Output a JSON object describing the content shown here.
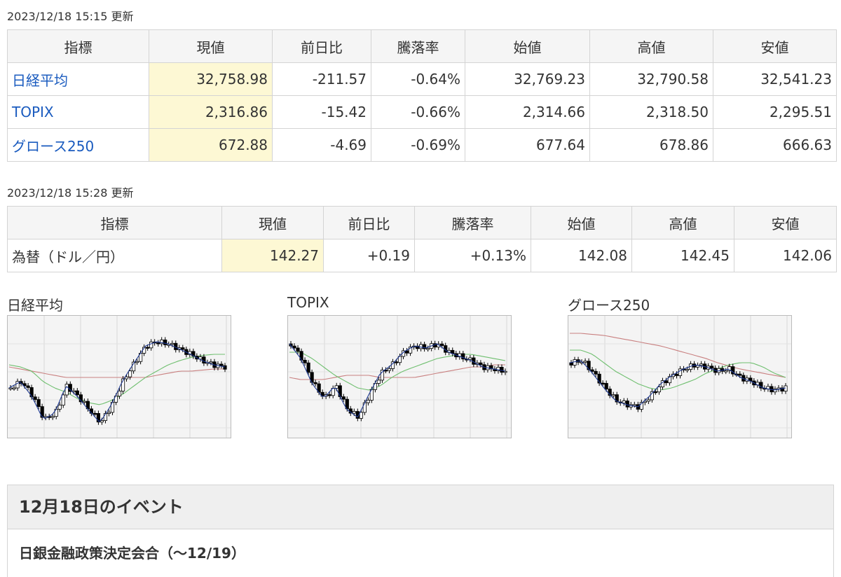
{
  "index_table": {
    "updated": "2023/12/18 15:15 更新",
    "headers": [
      "指標",
      "現値",
      "前日比",
      "騰落率",
      "始値",
      "高値",
      "安値"
    ],
    "rows": [
      {
        "name": "日経平均",
        "current": "32,758.98",
        "change": "-211.57",
        "rate": "-0.64%",
        "open": "32,769.23",
        "high": "32,790.58",
        "low": "32,541.23"
      },
      {
        "name": "TOPIX",
        "current": "2,316.86",
        "change": "-15.42",
        "rate": "-0.66%",
        "open": "2,314.66",
        "high": "2,318.50",
        "low": "2,295.51"
      },
      {
        "name": "グロース250",
        "current": "672.88",
        "change": "-4.69",
        "rate": "-0.69%",
        "open": "677.64",
        "high": "678.86",
        "low": "666.63"
      }
    ]
  },
  "fx_table": {
    "updated": "2023/12/18 15:28 更新",
    "headers": [
      "指標",
      "現値",
      "前日比",
      "騰落率",
      "始値",
      "高値",
      "安値"
    ],
    "rows": [
      {
        "name": "為替（ドル／円）",
        "current": "142.27",
        "change": "+0.19",
        "rate": "+0.13%",
        "open": "142.08",
        "high": "142.45",
        "low": "142.06"
      }
    ]
  },
  "charts": [
    {
      "title": "日経平均"
    },
    {
      "title": "TOPIX"
    },
    {
      "title": "グロース250"
    }
  ],
  "colors": {
    "link": "#1a5bbf",
    "negative": "#1a5bbf",
    "positive": "#e60012",
    "current_cell_bg": "#fdf8d4",
    "header_bg": "#f5f5f5",
    "ma_short": "#1f3a93",
    "ma_mid": "#6fbf6f",
    "ma_long": "#c98080"
  },
  "events": {
    "heading": "12月18日のイベント",
    "items": [
      "日銀金融政策決定会合（～12/19）"
    ]
  }
}
